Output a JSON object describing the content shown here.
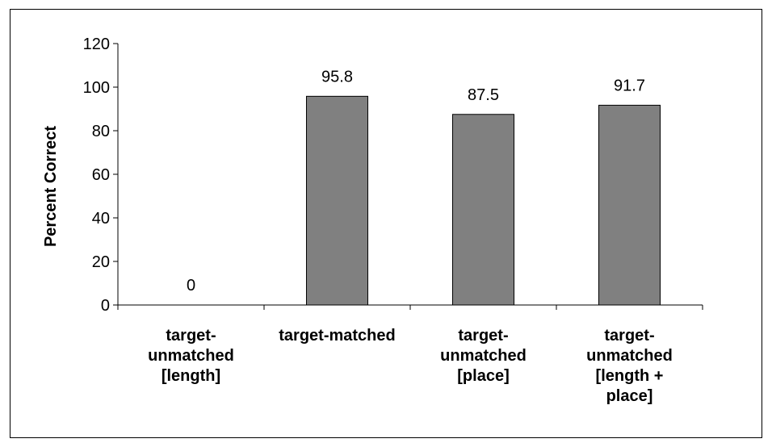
{
  "chart_data": {
    "type": "bar",
    "title": "",
    "xlabel": "",
    "ylabel": "Percent Correct",
    "ylim": [
      0,
      120
    ],
    "yticks": [
      0,
      20,
      40,
      60,
      80,
      100,
      120
    ],
    "grid": false,
    "legend": "none",
    "categories": [
      [
        "target-",
        "unmatched",
        "[length]"
      ],
      [
        "target-matched"
      ],
      [
        "target-",
        "unmatched",
        "[place]"
      ],
      [
        "target-",
        "unmatched",
        "[length +",
        "place]"
      ]
    ],
    "values": [
      0,
      95.8,
      87.5,
      91.7
    ],
    "data_labels": [
      "0",
      "95.8",
      "87.5",
      "91.7"
    ],
    "bar_color": "#808080",
    "bar_edge_color": "#000000"
  }
}
